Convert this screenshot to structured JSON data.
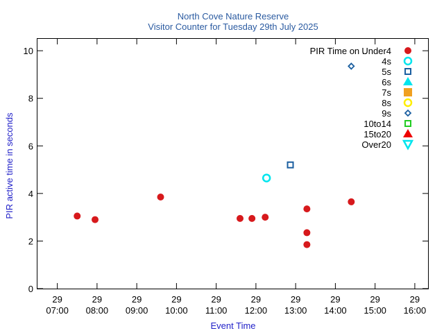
{
  "chart_data": {
    "type": "scatter",
    "title": "North Cove Nature Reserve",
    "subtitle": "Visitor Counter for Tuesday 29th July 2025",
    "xlabel": "Event Time",
    "ylabel": "PIR active time in seconds",
    "xlim": [
      "06:30",
      "16:20"
    ],
    "ylim": [
      0,
      10.5
    ],
    "x_ticks": [
      {
        "day": "29",
        "time": "07:00"
      },
      {
        "day": "29",
        "time": "08:00"
      },
      {
        "day": "29",
        "time": "09:00"
      },
      {
        "day": "29",
        "time": "10:00"
      },
      {
        "day": "29",
        "time": "11:00"
      },
      {
        "day": "29",
        "time": "12:00"
      },
      {
        "day": "29",
        "time": "13:00"
      },
      {
        "day": "29",
        "time": "14:00"
      },
      {
        "day": "29",
        "time": "15:00"
      },
      {
        "day": "29",
        "time": "16:00"
      }
    ],
    "y_ticks": [
      0,
      2,
      4,
      6,
      8,
      10
    ],
    "legend_title": "PIR Time on ..",
    "legend_position": "top-right",
    "grid": false,
    "series": [
      {
        "name": "Under4",
        "marker": "filled-circle",
        "color": "#d7191c",
        "points": [
          {
            "x": "07:30",
            "y": 3.05
          },
          {
            "x": "07:57",
            "y": 2.9
          },
          {
            "x": "09:36",
            "y": 3.85
          },
          {
            "x": "11:36",
            "y": 2.95
          },
          {
            "x": "11:54",
            "y": 2.95
          },
          {
            "x": "12:14",
            "y": 3.0
          },
          {
            "x": "13:17",
            "y": 3.35
          },
          {
            "x": "13:17",
            "y": 2.35
          },
          {
            "x": "13:17",
            "y": 1.85
          },
          {
            "x": "14:24",
            "y": 3.65
          }
        ]
      },
      {
        "name": "4s",
        "marker": "open-circle",
        "color": "#00e5ee",
        "points": [
          {
            "x": "12:16",
            "y": 4.65
          }
        ]
      },
      {
        "name": "5s",
        "marker": "open-square",
        "color": "#1b5fa0",
        "points": [
          {
            "x": "12:52",
            "y": 5.2
          }
        ]
      },
      {
        "name": "6s",
        "marker": "filled-triangle-up",
        "color": "#00e5ee",
        "points": []
      },
      {
        "name": "7s",
        "marker": "filled-square",
        "color": "#f0a020",
        "points": []
      },
      {
        "name": "8s",
        "marker": "open-circle",
        "color": "#ffee00",
        "points": []
      },
      {
        "name": "9s",
        "marker": "open-diamond",
        "color": "#1b5fa0",
        "points": [
          {
            "x": "14:24",
            "y": 9.35
          }
        ]
      },
      {
        "name": "10to14",
        "marker": "open-square",
        "color": "#22cc22",
        "points": []
      },
      {
        "name": "15to20",
        "marker": "filled-triangle-up",
        "color": "#ee0000",
        "points": []
      },
      {
        "name": "Over20",
        "marker": "open-triangle-down",
        "color": "#00e5ee",
        "points": []
      }
    ]
  }
}
